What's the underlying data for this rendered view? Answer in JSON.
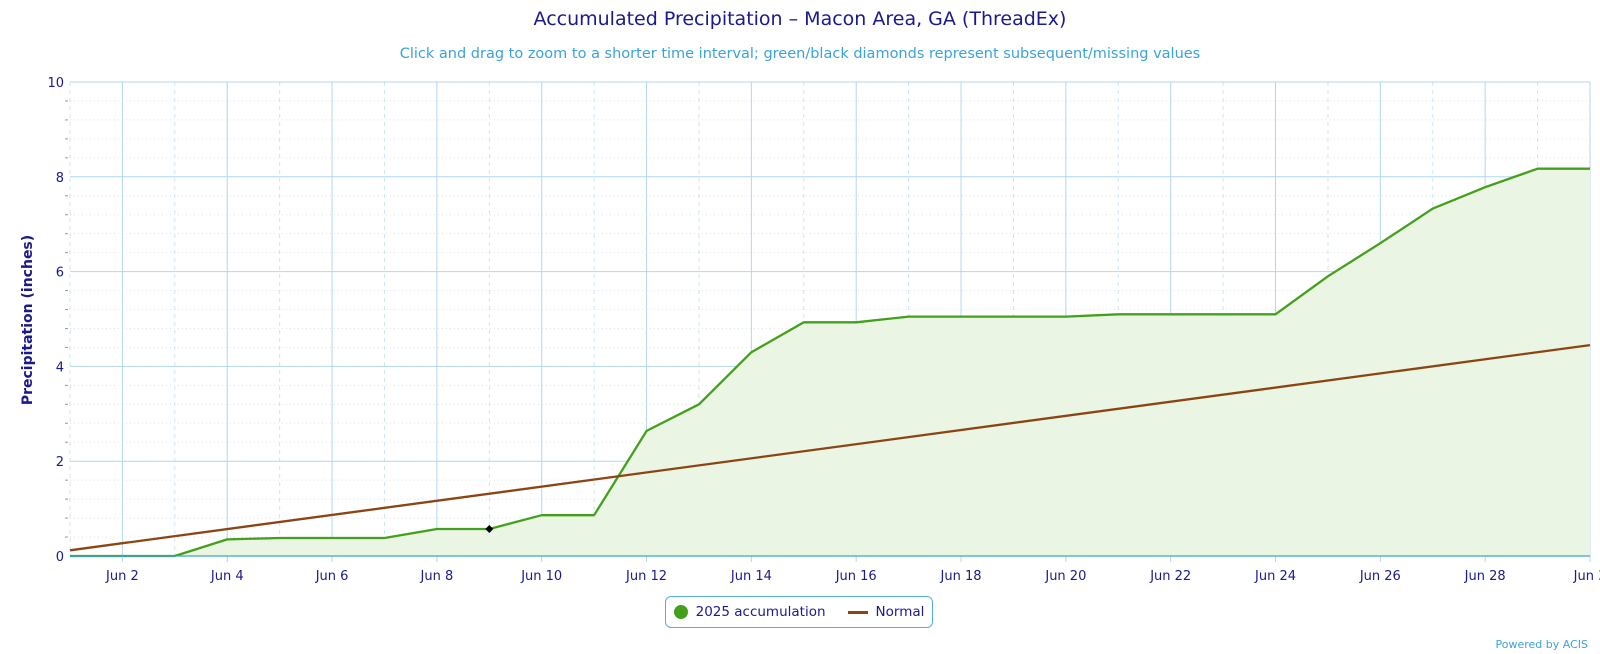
{
  "chart_data": {
    "type": "area",
    "title": "Accumulated Precipitation – Macon Area, GA (ThreadEx)",
    "subtitle": "Click and drag to zoom to a shorter time interval; green/black diamonds represent subsequent/missing values",
    "ylabel": "Precipitation (inches)",
    "xlabel": "",
    "ylim": [
      0,
      10
    ],
    "xlim": [
      1,
      30
    ],
    "y_ticks": [
      0,
      2,
      4,
      6,
      8,
      10
    ],
    "y_tick_labels": [
      "0",
      "2",
      "4",
      "6",
      "8",
      "10"
    ],
    "x_ticks": [
      2,
      4,
      6,
      8,
      10,
      12,
      14,
      16,
      18,
      20,
      22,
      24,
      26,
      28,
      30
    ],
    "x_tick_labels": [
      "Jun 2",
      "Jun 4",
      "Jun 6",
      "Jun 8",
      "Jun 10",
      "Jun 12",
      "Jun 14",
      "Jun 16",
      "Jun 18",
      "Jun 20",
      "Jun 22",
      "Jun 24",
      "Jun 26",
      "Jun 28",
      "Jun 3"
    ],
    "grid": true,
    "legend_position": "bottom-center",
    "series": [
      {
        "name": "2025 accumulation",
        "color": "#44a01c",
        "fill": "#eaf5e3",
        "x": [
          1,
          2,
          3,
          4,
          5,
          6,
          7,
          8,
          9,
          10,
          11,
          12,
          13,
          14,
          15,
          16,
          17,
          18,
          19,
          20,
          21,
          22,
          23,
          24,
          25,
          26,
          27,
          28,
          29,
          30
        ],
        "values": [
          0,
          0,
          0,
          0.35,
          0.38,
          0.38,
          0.38,
          0.57,
          0.57,
          0.86,
          0.86,
          2.64,
          3.2,
          4.3,
          4.93,
          4.93,
          5.05,
          5.05,
          5.05,
          5.05,
          5.1,
          5.1,
          5.1,
          5.1,
          5.9,
          6.6,
          7.33,
          7.78,
          8.17,
          8.17
        ]
      },
      {
        "name": "Normal",
        "color": "#8b4513",
        "x": [
          1,
          30
        ],
        "values": [
          0.12,
          4.45
        ]
      }
    ],
    "missing_values": [
      {
        "x": 9,
        "y": 0.57
      }
    ]
  },
  "legend": {
    "items": [
      {
        "label": "2025 accumulation",
        "color": "#44a01c"
      },
      {
        "label": "Normal",
        "color": "#8b4513"
      }
    ]
  },
  "credits": "Powered by ACIS"
}
